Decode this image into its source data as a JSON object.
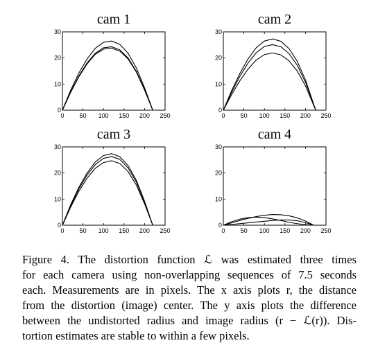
{
  "chart_data": [
    {
      "type": "line",
      "title": "cam 1",
      "xlim": [
        0,
        250
      ],
      "ylim": [
        0,
        30
      ],
      "xticks": [
        "0",
        "50",
        "100",
        "150",
        "200",
        "250"
      ],
      "yticks": [
        "0",
        "10",
        "20",
        "30"
      ],
      "grid": false,
      "series": [
        {
          "x": [
            0,
            20,
            40,
            60,
            80,
            100,
            120,
            140,
            160,
            180,
            200,
            220
          ],
          "y": [
            0,
            7.6,
            14.2,
            19.6,
            23.7,
            26.0,
            26.5,
            25.2,
            21.8,
            16.2,
            8.6,
            0
          ]
        },
        {
          "x": [
            0,
            20,
            40,
            60,
            80,
            100,
            120,
            140,
            160,
            180,
            200,
            220
          ],
          "y": [
            0,
            7.0,
            13.1,
            18.1,
            21.8,
            23.9,
            24.3,
            23.1,
            20.0,
            14.9,
            7.9,
            0
          ]
        },
        {
          "x": [
            0,
            20,
            40,
            60,
            80,
            100,
            120,
            140,
            160,
            180,
            200,
            220
          ],
          "y": [
            0,
            6.8,
            12.8,
            17.7,
            21.4,
            23.4,
            23.8,
            22.6,
            19.6,
            14.6,
            7.7,
            0
          ]
        }
      ]
    },
    {
      "type": "line",
      "title": "cam 2",
      "xlim": [
        0,
        250
      ],
      "ylim": [
        0,
        30
      ],
      "xticks": [
        "0",
        "50",
        "100",
        "150",
        "200",
        "250"
      ],
      "yticks": [
        "0",
        "10",
        "20",
        "30"
      ],
      "grid": false,
      "series": [
        {
          "x": [
            0,
            20,
            40,
            60,
            80,
            100,
            120,
            140,
            160,
            180,
            200,
            225
          ],
          "y": [
            0,
            7.4,
            14.0,
            19.6,
            23.9,
            26.5,
            27.3,
            26.4,
            23.6,
            18.7,
            11.6,
            0
          ]
        },
        {
          "x": [
            0,
            20,
            40,
            60,
            80,
            100,
            120,
            140,
            160,
            180,
            200,
            225
          ],
          "y": [
            0,
            6.8,
            12.9,
            18.0,
            22.0,
            24.4,
            25.1,
            24.3,
            21.7,
            17.2,
            10.7,
            0
          ]
        },
        {
          "x": [
            0,
            20,
            40,
            60,
            80,
            100,
            120,
            140,
            160,
            180,
            200,
            225
          ],
          "y": [
            0,
            5.9,
            11.2,
            15.7,
            19.2,
            21.3,
            21.9,
            21.2,
            18.9,
            15.0,
            9.3,
            0
          ]
        }
      ]
    },
    {
      "type": "line",
      "title": "cam 3",
      "xlim": [
        0,
        250
      ],
      "ylim": [
        0,
        30
      ],
      "xticks": [
        "0",
        "50",
        "100",
        "150",
        "200",
        "250"
      ],
      "yticks": [
        "0",
        "10",
        "20",
        "30"
      ],
      "grid": false,
      "series": [
        {
          "x": [
            0,
            20,
            40,
            60,
            80,
            100,
            120,
            140,
            160,
            180,
            200,
            220
          ],
          "y": [
            0,
            7.8,
            14.5,
            20.0,
            24.2,
            26.7,
            27.4,
            26.2,
            22.8,
            17.2,
            9.2,
            0
          ]
        },
        {
          "x": [
            0,
            20,
            40,
            60,
            80,
            100,
            120,
            140,
            160,
            180,
            200,
            220
          ],
          "y": [
            0,
            7.4,
            13.9,
            19.2,
            23.2,
            25.6,
            26.3,
            25.2,
            21.9,
            16.5,
            8.8,
            0
          ]
        },
        {
          "x": [
            0,
            20,
            40,
            60,
            80,
            100,
            120,
            140,
            160,
            180,
            200,
            220
          ],
          "y": [
            0,
            6.9,
            13.0,
            18.0,
            21.8,
            24.0,
            24.7,
            23.6,
            20.5,
            15.4,
            8.2,
            0
          ]
        }
      ]
    },
    {
      "type": "line",
      "title": "cam 4",
      "xlim": [
        0,
        250
      ],
      "ylim": [
        0,
        30
      ],
      "xticks": [
        "0",
        "50",
        "100",
        "150",
        "200",
        "250"
      ],
      "yticks": [
        "0",
        "10",
        "20",
        "30"
      ],
      "grid": false,
      "series": [
        {
          "x": [
            0,
            20,
            40,
            60,
            80,
            100,
            120,
            140,
            160,
            180,
            200,
            220
          ],
          "y": [
            0,
            0.9,
            1.8,
            2.6,
            3.3,
            3.8,
            4.1,
            4.0,
            3.6,
            2.8,
            1.6,
            0
          ]
        },
        {
          "x": [
            0,
            20,
            40,
            60,
            80,
            100,
            120,
            140,
            160,
            180,
            200,
            220
          ],
          "y": [
            0,
            1.3,
            2.3,
            2.9,
            3.1,
            2.9,
            2.4,
            1.8,
            1.1,
            0.6,
            0.2,
            0
          ]
        },
        {
          "x": [
            0,
            20,
            40,
            60,
            80,
            100,
            120,
            140,
            160,
            180,
            200,
            220
          ],
          "y": [
            0,
            0.3,
            0.6,
            0.9,
            1.2,
            1.5,
            1.8,
            2.0,
            2.0,
            1.7,
            1.0,
            0
          ]
        }
      ]
    }
  ],
  "caption": {
    "lines": [
      "Figure 4. The distortion function ℒ was estimated three times",
      "for each camera using non-overlapping sequences of 7.5 seconds",
      "each. Measurements are in pixels. The x axis plots r, the distance",
      "from the distortion (image) center. The y axis plots the difference",
      "between the undistorted radius and image radius (r − ℒ(r)). Dis-",
      "tortion estimates are stable to within a few pixels."
    ]
  }
}
